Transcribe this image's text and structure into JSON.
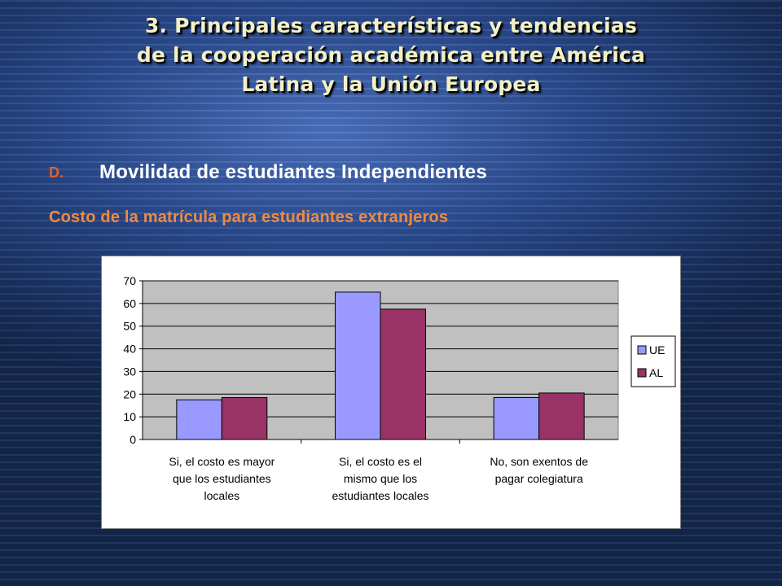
{
  "slide": {
    "title_lines": [
      "3. Principales características y tendencias",
      "de la cooperación académica entre América",
      "Latina y la Unión Europea"
    ],
    "section_marker": "D.",
    "subtitle": "Movilidad de estudiantes Independientes",
    "chart_caption": "Costo de la matrícula para estudiantes extranjeros"
  },
  "colors": {
    "title": "#f3f0c6",
    "marker": "#e85d2a",
    "caption": "#f08a3e",
    "plot_area": "#c0c0c0",
    "ue": "#9999ff",
    "al": "#993366"
  },
  "chart_data": {
    "type": "bar",
    "categories": [
      [
        "Si, el costo es mayor",
        "que los estudiantes",
        "locales"
      ],
      [
        "Si, el costo es el",
        "mismo que los",
        "estudiantes locales"
      ],
      [
        "No, son exentos de",
        "pagar colegiatura"
      ]
    ],
    "series": [
      {
        "name": "UE",
        "values": [
          17.5,
          65,
          18.5
        ]
      },
      {
        "name": "AL",
        "values": [
          18.5,
          57.5,
          20.5
        ]
      }
    ],
    "ylim": [
      0,
      70
    ],
    "yticks": [
      0,
      10,
      20,
      30,
      40,
      50,
      60,
      70
    ],
    "grid": true,
    "legend": "right",
    "title": "",
    "xlabel": "",
    "ylabel": ""
  }
}
